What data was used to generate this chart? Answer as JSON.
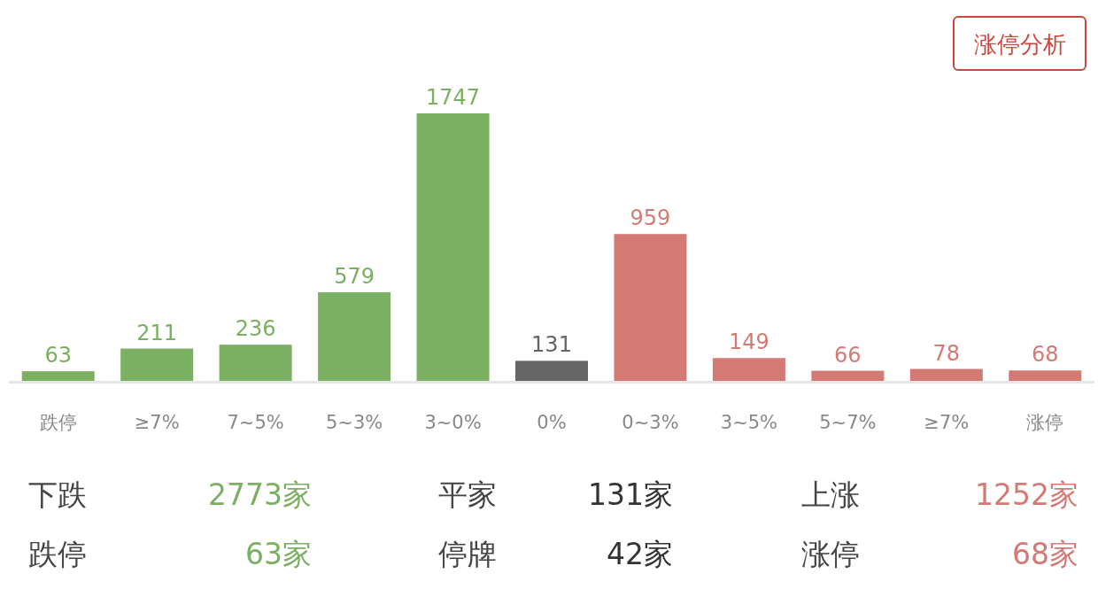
{
  "chart_data": {
    "type": "bar",
    "categories": [
      "跌停",
      "≥7%",
      "7~5%",
      "5~3%",
      "3~0%",
      "0%",
      "0~3%",
      "3~5%",
      "5~7%",
      "≥7%",
      "涨停"
    ],
    "values": [
      63,
      211,
      236,
      579,
      1747,
      131,
      959,
      149,
      66,
      78,
      68
    ],
    "colors": [
      "#7bb062",
      "#7bb062",
      "#7bb062",
      "#7bb062",
      "#7bb062",
      "#666666",
      "#d47a74",
      "#d47a74",
      "#d47a74",
      "#d47a74",
      "#d47a74"
    ],
    "data_labels": true,
    "annotations": [
      "涨停分析",
      "下跌",
      "2773家",
      "平家",
      "131家",
      "上涨",
      "1252家",
      "跌停",
      "63家",
      "停牌",
      "42家",
      "涨停",
      "68家"
    ]
  }
}
